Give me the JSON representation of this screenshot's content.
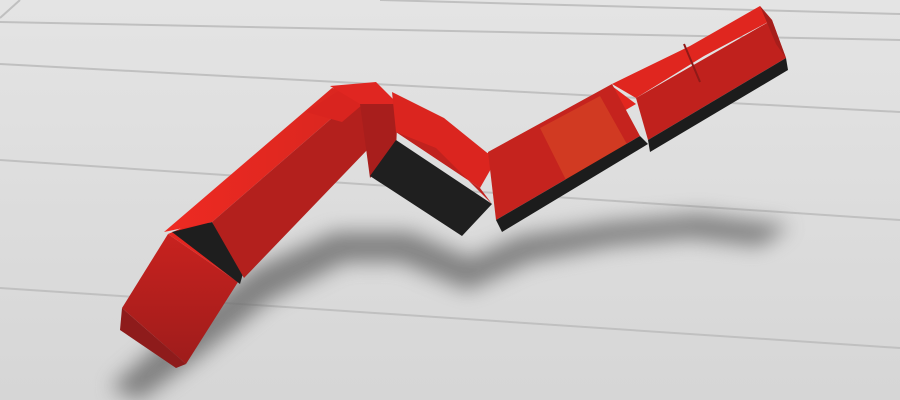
{
  "scene": {
    "subject": "3d-line-chart-arrow",
    "colors": {
      "background": "#dedede",
      "gridline": "#bdbdbd",
      "arrow_top": "#e0241f",
      "arrow_front": "#b01e1c",
      "arrow_side": "#8e1b1b",
      "arrow_bottom": "#1e1e1e",
      "shadow": "#6f6f6f"
    },
    "gridline_count": 6,
    "segment_count": 5
  }
}
